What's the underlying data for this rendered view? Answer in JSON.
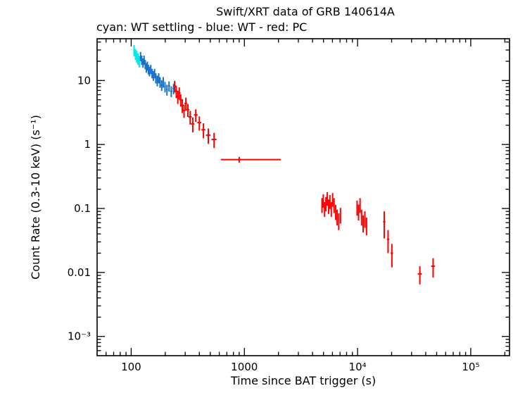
{
  "chart_data": {
    "type": "scatter",
    "title": "Swift/XRT data of GRB 140614A",
    "subtitle": "cyan: WT settling - blue: WT - red: PC",
    "xlabel": "Time since BAT trigger (s)",
    "ylabel": "Count Rate (0.3-10 keV) (s⁻¹)",
    "xscale": "log",
    "yscale": "log",
    "xlim": [
      50,
      220000
    ],
    "ylim": [
      0.0005,
      45
    ],
    "grid": false,
    "background": "#ffffff",
    "axis_color": "#000000",
    "xticks": [
      {
        "v": 100,
        "label": "100"
      },
      {
        "v": 1000,
        "label": "1000"
      },
      {
        "v": 10000,
        "label": "10⁴"
      },
      {
        "v": 100000,
        "label": "10⁵"
      }
    ],
    "yticks": [
      {
        "v": 10,
        "label": "10"
      },
      {
        "v": 1,
        "label": "1"
      },
      {
        "v": 0.1,
        "label": "0.1"
      },
      {
        "v": 0.01,
        "label": "0.01"
      },
      {
        "v": 0.001,
        "label": "10⁻³"
      }
    ],
    "point_format": [
      "time_s",
      "rate",
      "terr_minus",
      "terr_plus",
      "rate_err"
    ],
    "series": [
      {
        "id": "wt-settling",
        "name": "WT settling",
        "color": "#00e8e8",
        "points": [
          [
            106,
            30,
            1.5,
            1.5,
            6
          ],
          [
            109,
            26,
            1.5,
            1.5,
            5
          ],
          [
            112,
            24,
            1.5,
            1.5,
            5
          ],
          [
            115,
            22,
            1.5,
            1.5,
            4.5
          ],
          [
            118,
            20,
            1.5,
            1.5,
            4
          ]
        ]
      },
      {
        "id": "wt",
        "name": "WT",
        "color": "#1873cd",
        "points": [
          [
            121,
            24,
            1.5,
            1.5,
            4
          ],
          [
            124,
            21,
            1.5,
            1.5,
            3.5
          ],
          [
            127,
            19,
            1.5,
            1.5,
            3.2
          ],
          [
            130,
            21,
            1.5,
            1.5,
            3.5
          ],
          [
            133,
            18,
            1.5,
            1.5,
            3
          ],
          [
            136,
            16,
            1.5,
            1.5,
            2.8
          ],
          [
            139,
            17,
            1.5,
            1.5,
            2.8
          ],
          [
            142,
            15,
            1.5,
            1.5,
            2.6
          ],
          [
            145,
            14,
            1.5,
            1.5,
            2.4
          ],
          [
            149,
            15,
            2,
            2,
            2.5
          ],
          [
            153,
            13,
            2,
            2,
            2.2
          ],
          [
            157,
            12,
            2,
            2,
            2.1
          ],
          [
            161,
            13,
            2,
            2,
            2.2
          ],
          [
            165,
            11,
            2,
            2,
            2
          ],
          [
            170,
            10,
            2.5,
            2.5,
            1.9
          ],
          [
            175,
            11,
            2.5,
            2.5,
            2
          ],
          [
            180,
            9.5,
            2.5,
            2.5,
            1.8
          ],
          [
            186,
            8.5,
            3,
            3,
            1.6
          ],
          [
            192,
            9.5,
            3,
            3,
            1.8
          ],
          [
            199,
            8,
            3.5,
            3.5,
            1.5
          ],
          [
            207,
            7.2,
            4,
            4,
            1.4
          ],
          [
            216,
            8.2,
            4.5,
            4.5,
            1.5
          ],
          [
            226,
            6.8,
            5,
            5,
            1.3
          ],
          [
            237,
            7.5,
            5.5,
            5.5,
            1.4
          ]
        ]
      },
      {
        "id": "pc",
        "name": "PC",
        "color": "#ff0000",
        "points": [
          [
            242,
            8.2,
            6,
            6,
            1.7
          ],
          [
            250,
            6.8,
            6,
            6,
            1.5
          ],
          [
            258,
            5.6,
            6,
            6,
            1.3
          ],
          [
            266,
            6.4,
            7,
            7,
            1.4
          ],
          [
            274,
            5.0,
            7,
            7,
            1.1
          ],
          [
            283,
            4.1,
            8,
            8,
            1.0
          ],
          [
            293,
            3.4,
            8,
            8,
            0.8
          ],
          [
            304,
            4.4,
            9,
            9,
            1.0
          ],
          [
            317,
            3.5,
            10,
            10,
            0.8
          ],
          [
            332,
            2.7,
            11,
            11,
            0.65
          ],
          [
            350,
            2.1,
            12,
            12,
            0.55
          ],
          [
            372,
            2.9,
            14,
            14,
            0.65
          ],
          [
            400,
            2.2,
            16,
            16,
            0.55
          ],
          [
            435,
            1.7,
            18,
            18,
            0.45
          ],
          [
            480,
            1.4,
            22,
            22,
            0.38
          ],
          [
            540,
            1.2,
            28,
            28,
            0.32
          ],
          [
            900,
            0.58,
            280,
            1200,
            0.06
          ],
          [
            4850,
            0.115,
            60,
            60,
            0.03
          ],
          [
            4980,
            0.135,
            60,
            60,
            0.032
          ],
          [
            5110,
            0.1,
            60,
            60,
            0.026
          ],
          [
            5250,
            0.12,
            60,
            60,
            0.03
          ],
          [
            5400,
            0.145,
            60,
            60,
            0.035
          ],
          [
            5550,
            0.11,
            60,
            60,
            0.028
          ],
          [
            5700,
            0.13,
            60,
            60,
            0.032
          ],
          [
            5860,
            0.1,
            60,
            60,
            0.026
          ],
          [
            6020,
            0.14,
            70,
            70,
            0.034
          ],
          [
            6200,
            0.115,
            70,
            70,
            0.03
          ],
          [
            6400,
            0.09,
            70,
            70,
            0.024
          ],
          [
            6600,
            0.075,
            70,
            70,
            0.021
          ],
          [
            6820,
            0.065,
            80,
            80,
            0.019
          ],
          [
            7060,
            0.08,
            80,
            80,
            0.022
          ],
          [
            9900,
            0.105,
            120,
            120,
            0.028
          ],
          [
            10200,
            0.09,
            120,
            120,
            0.025
          ],
          [
            10520,
            0.115,
            120,
            120,
            0.03
          ],
          [
            10850,
            0.075,
            130,
            130,
            0.021
          ],
          [
            11200,
            0.06,
            130,
            130,
            0.018
          ],
          [
            11600,
            0.07,
            140,
            140,
            0.02
          ],
          [
            12000,
            0.055,
            150,
            150,
            0.017
          ],
          [
            17200,
            0.062,
            400,
            400,
            0.028
          ],
          [
            18600,
            0.033,
            450,
            450,
            0.013
          ],
          [
            20100,
            0.02,
            500,
            500,
            0.008
          ],
          [
            35500,
            0.0095,
            1500,
            1500,
            0.003
          ],
          [
            46500,
            0.0125,
            1800,
            1800,
            0.0042
          ]
        ]
      }
    ]
  }
}
